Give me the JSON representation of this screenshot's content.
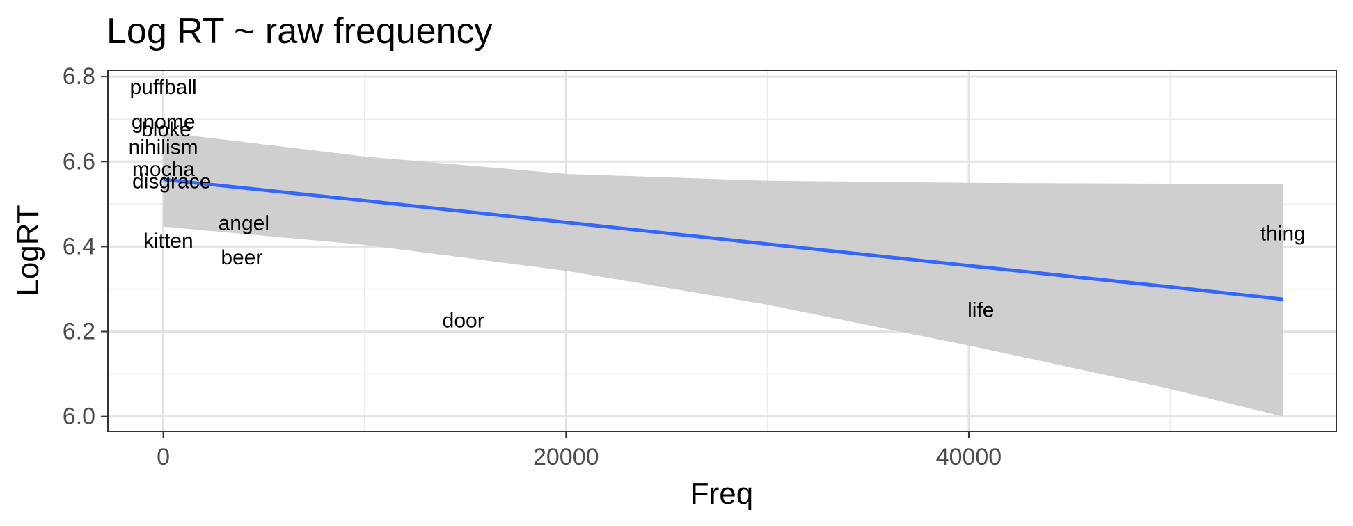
{
  "chart_data": {
    "type": "scatter",
    "title": "Log RT ~ raw frequency",
    "xlabel": "Freq",
    "ylabel": "LogRT",
    "xlim": [
      -2750,
      58250
    ],
    "ylim": [
      5.965,
      6.815
    ],
    "x_ticks": [
      0,
      20000,
      40000
    ],
    "x_tick_labels": [
      "0",
      "20000",
      "40000"
    ],
    "x_minor_ticks": [
      10000,
      30000,
      50000
    ],
    "y_ticks": [
      6.0,
      6.2,
      6.4,
      6.6,
      6.8
    ],
    "y_tick_labels": [
      "6.0",
      "6.2",
      "6.4",
      "6.6",
      "6.8"
    ],
    "y_minor_ticks": [
      6.1,
      6.3,
      6.5,
      6.7
    ],
    "grid": true,
    "legend": "none",
    "points": [
      {
        "label": "puffball",
        "x": 0,
        "y": 6.775
      },
      {
        "label": "gnome",
        "x": 5,
        "y": 6.693
      },
      {
        "label": "bloke",
        "x": 150,
        "y": 6.675
      },
      {
        "label": "nihilism",
        "x": 2,
        "y": 6.633
      },
      {
        "label": "mocha",
        "x": 10,
        "y": 6.582
      },
      {
        "label": "disgrace",
        "x": 420,
        "y": 6.553
      },
      {
        "label": "angel",
        "x": 4000,
        "y": 6.455
      },
      {
        "label": "kitten",
        "x": 250,
        "y": 6.413
      },
      {
        "label": "beer",
        "x": 3900,
        "y": 6.374
      },
      {
        "label": "door",
        "x": 14900,
        "y": 6.225
      },
      {
        "label": "life",
        "x": 40600,
        "y": 6.25
      },
      {
        "label": "thing",
        "x": 55600,
        "y": 6.43
      }
    ],
    "fit": {
      "method": "lm",
      "color": "#3366ff",
      "x": [
        0,
        10000,
        20000,
        30000,
        40000,
        50000,
        55600
      ],
      "y": [
        6.558,
        6.508,
        6.457,
        6.406,
        6.355,
        6.305,
        6.276
      ],
      "ci_lower": [
        6.447,
        6.404,
        6.343,
        6.263,
        6.167,
        6.065,
        6.0
      ],
      "ci_upper": [
        6.669,
        6.612,
        6.571,
        6.555,
        6.55,
        6.548,
        6.548
      ],
      "ci_color": "#cccccc"
    }
  }
}
